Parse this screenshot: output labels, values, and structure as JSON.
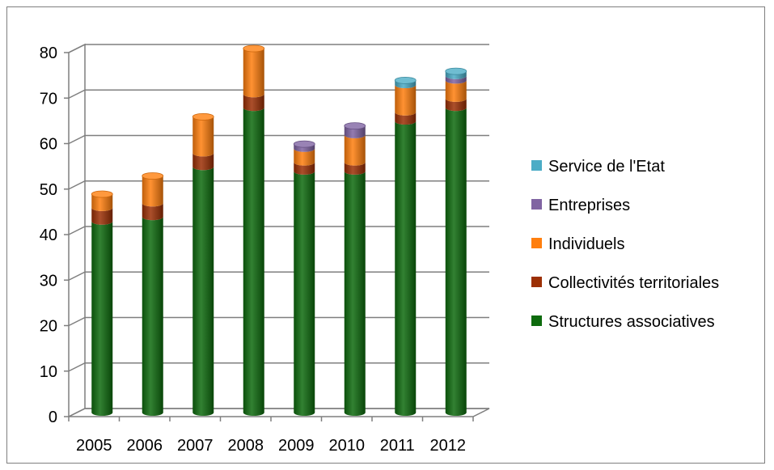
{
  "chart_data": {
    "type": "bar",
    "stacked": true,
    "categories": [
      "2005",
      "2006",
      "2007",
      "2008",
      "2009",
      "2010",
      "2011",
      "2012"
    ],
    "series": [
      {
        "name": "Structures associatives",
        "color": "#0e6b0e",
        "values": [
          42,
          43,
          54,
          67,
          53,
          53,
          64,
          67
        ]
      },
      {
        "name": "Collectivités territoriales",
        "color": "#9c3005",
        "values": [
          3,
          3,
          3,
          3,
          2,
          2,
          2,
          2
        ]
      },
      {
        "name": "Individuels",
        "color": "#ff7f0e",
        "values": [
          3,
          6,
          8,
          10,
          3,
          6,
          6,
          4
        ]
      },
      {
        "name": "Entreprises",
        "color": "#8064a2",
        "values": [
          0,
          0,
          0,
          0,
          1,
          2,
          0,
          1
        ]
      },
      {
        "name": "Service de l'Etat",
        "color": "#4bacc6",
        "values": [
          0,
          0,
          0,
          0,
          0,
          0,
          1,
          1
        ]
      }
    ],
    "y_ticks": [
      "0",
      "10",
      "20",
      "30",
      "40",
      "50",
      "60",
      "70",
      "80"
    ],
    "ylim": [
      0,
      80
    ],
    "grid": true,
    "legend_position": "right",
    "title": "",
    "xlabel": "",
    "ylabel": ""
  }
}
